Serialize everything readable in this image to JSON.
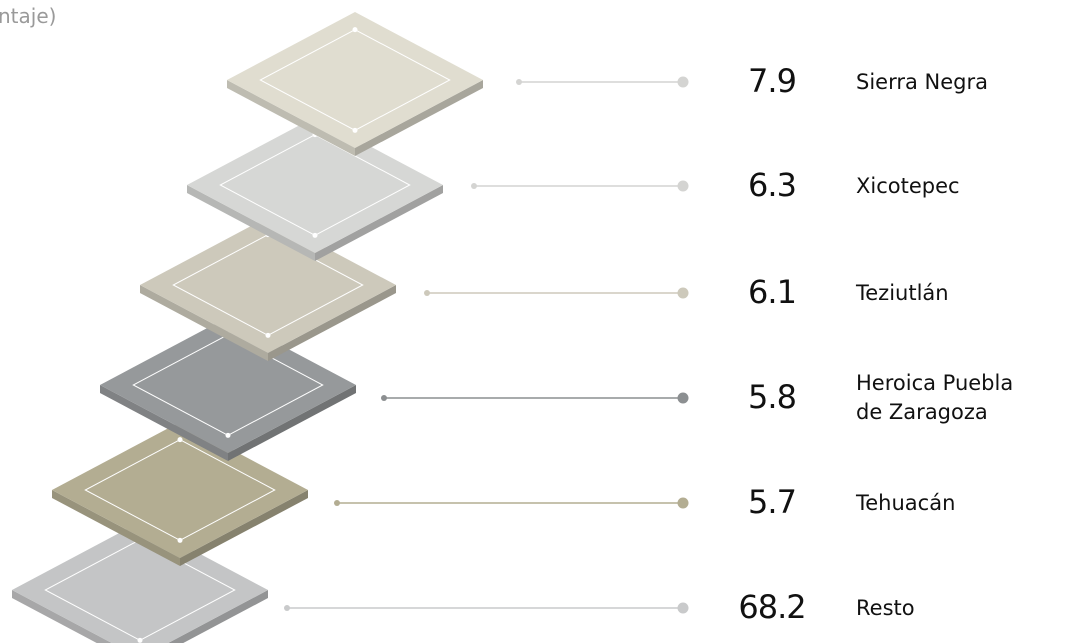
{
  "title": "ntaje)",
  "items": [
    {
      "value": 7.9,
      "label": "Sierra Negra",
      "color": "#e0ddd0",
      "line_color": "#d4d4d2"
    },
    {
      "value": 6.3,
      "label": "Xicotepec",
      "color": "#d6d7d5",
      "line_color": "#d4d4d2"
    },
    {
      "value": 6.1,
      "label": "Teziutlán",
      "color": "#cdc9bb",
      "line_color": "#cdc9bb"
    },
    {
      "value": 5.8,
      "label": "Heroica Puebla de Zaragoza",
      "color": "#96999b",
      "line_color": "#8c8f91"
    },
    {
      "value": 5.7,
      "label": "Tehuacán",
      "color": "#b3ad92",
      "line_color": "#b3ad92"
    },
    {
      "value": 68.2,
      "label": "Resto",
      "color": "#c4c5c6",
      "line_color": "#c9cacb"
    }
  ]
}
